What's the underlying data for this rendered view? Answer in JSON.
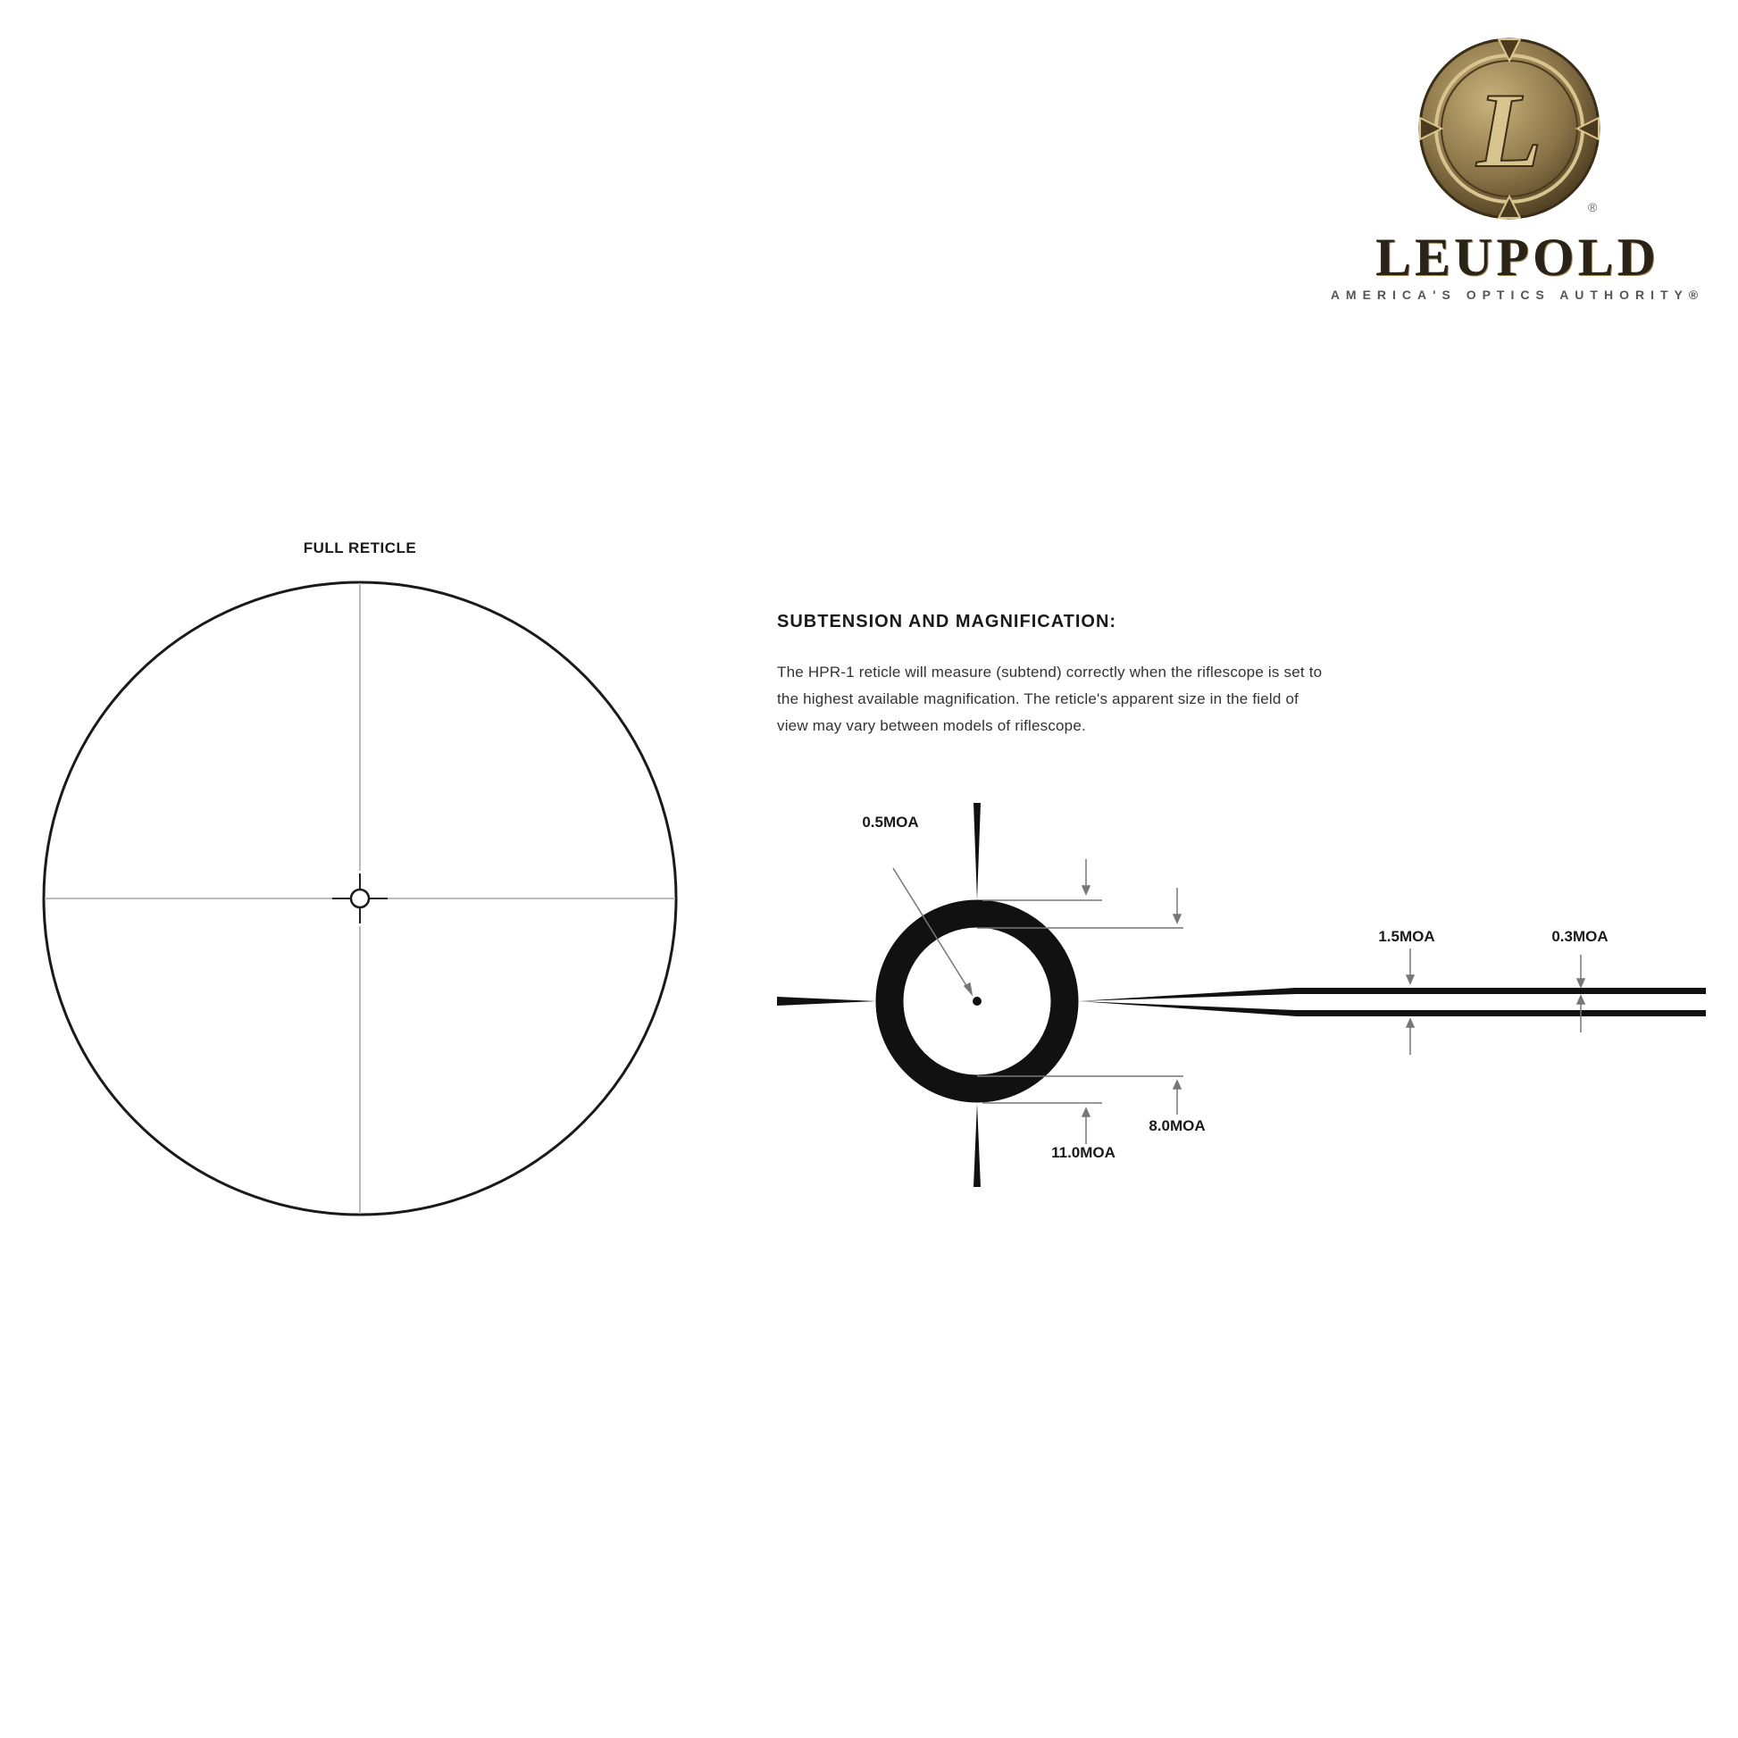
{
  "logo": {
    "brand": "LEUPOLD",
    "tagline": "AMERICA'S OPTICS AUTHORITY®",
    "registered_mark": "®",
    "medallion_letter": "L",
    "colors": {
      "bronze": "#8a7448",
      "bronze_dark": "#4a3a1e",
      "bronze_light": "#c9b27a"
    }
  },
  "full_reticle": {
    "title": "FULL RETICLE"
  },
  "subtension": {
    "title": "SUBTENSION AND MAGNIFICATION:",
    "paragraph_lines": [
      "The HPR-1 reticle will measure (subtend) correctly when the riflescope is set to",
      "the highest available magnification. The reticle's apparent size in the field of",
      "view may vary between models of riflescope."
    ],
    "labels": {
      "dot": "0.5MOA",
      "post": "1.5MOA",
      "line": "0.3MOA",
      "inner_ring": "8.0MOA",
      "outer_ring": "11.0MOA"
    }
  }
}
